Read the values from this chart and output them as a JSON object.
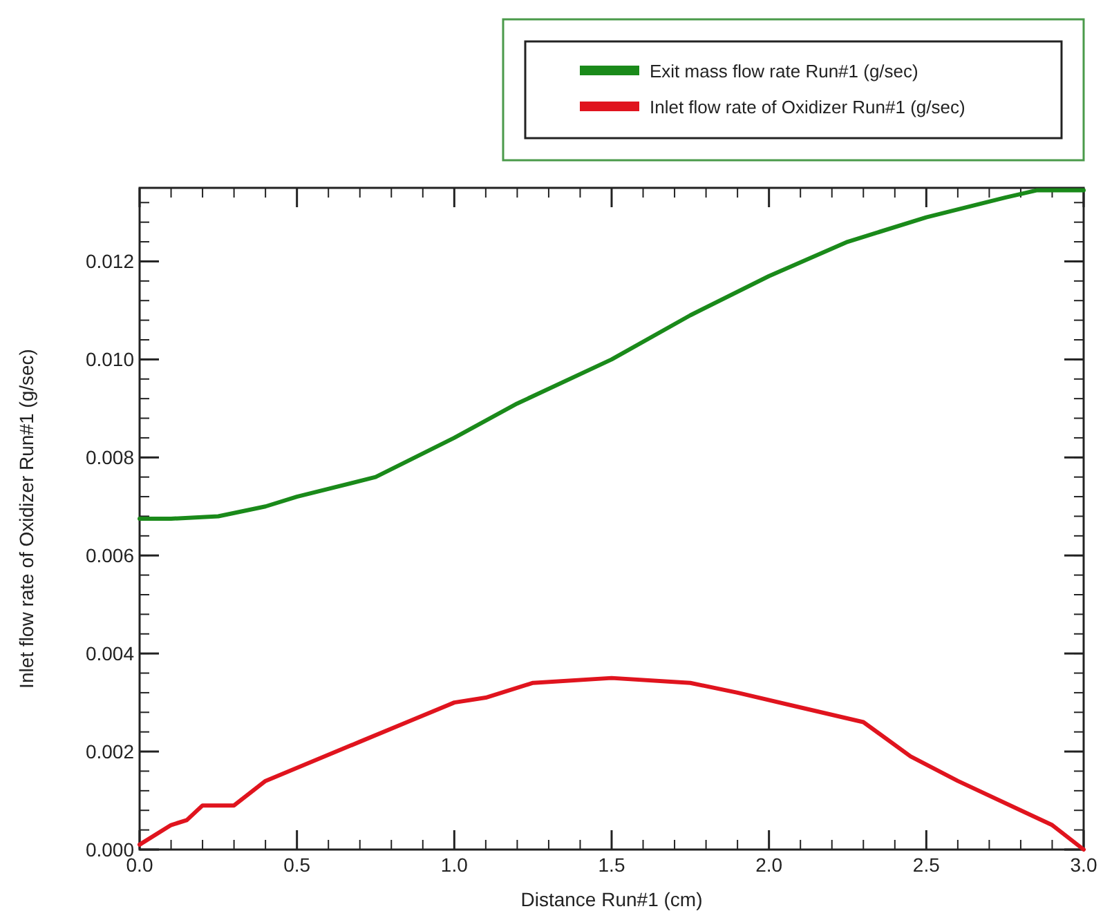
{
  "chart_data": {
    "type": "line",
    "xlabel": "Distance Run#1 (cm)",
    "ylabel": "Inlet flow rate of Oxidizer Run#1 (g/sec)",
    "xlim": [
      0,
      3
    ],
    "xticks": [
      {
        "value": 0,
        "label": "0.0"
      },
      {
        "value": 0.5,
        "label": "0.5"
      },
      {
        "value": 1,
        "label": "1.0"
      },
      {
        "value": 1.5,
        "label": "1.5"
      },
      {
        "value": 2,
        "label": "2.0"
      },
      {
        "value": 2.5,
        "label": "2.5"
      },
      {
        "value": 3,
        "label": "3.0"
      }
    ],
    "ylim": [
      0,
      0.0135
    ],
    "yticks": [
      {
        "value": 0,
        "label": "0.000"
      },
      {
        "value": 0.002,
        "label": "0.002"
      },
      {
        "value": 0.004,
        "label": "0.004"
      },
      {
        "value": 0.006,
        "label": "0.006"
      },
      {
        "value": 0.008,
        "label": "0.008"
      },
      {
        "value": 0.01,
        "label": "0.010"
      },
      {
        "value": 0.012,
        "label": "0.012"
      }
    ],
    "grid": false,
    "legend": "top right",
    "line_style": "solid",
    "marker": "none",
    "series": [
      {
        "name": "Exit mass flow rate Run#1 (g/sec)",
        "color": "#1a8a1a",
        "x": [
          0,
          0.1,
          0.25,
          0.4,
          0.5,
          0.75,
          1.0,
          1.2,
          1.5,
          1.75,
          2.0,
          2.25,
          2.5,
          2.75,
          2.85,
          3.0
        ],
        "values": [
          0.00675,
          0.00675,
          0.0068,
          0.007,
          0.0072,
          0.0076,
          0.0084,
          0.0091,
          0.01,
          0.0109,
          0.0117,
          0.0124,
          0.0129,
          0.0133,
          0.01345,
          0.01345
        ]
      },
      {
        "name": "Inlet flow rate of Oxidizer Run#1 (g/sec)",
        "color": "#e0141e",
        "x": [
          0,
          0.1,
          0.15,
          0.2,
          0.3,
          0.4,
          0.55,
          0.7,
          0.85,
          1.0,
          1.1,
          1.25,
          1.5,
          1.75,
          1.9,
          2.1,
          2.3,
          2.45,
          2.6,
          2.8,
          2.9,
          3.0
        ],
        "values": [
          0.0001,
          0.0005,
          0.0006,
          0.0009,
          0.0009,
          0.0014,
          0.0018,
          0.0022,
          0.0026,
          0.003,
          0.0031,
          0.0034,
          0.0035,
          0.0034,
          0.0032,
          0.0029,
          0.0026,
          0.0019,
          0.0014,
          0.0008,
          0.0005,
          0
        ]
      }
    ]
  }
}
